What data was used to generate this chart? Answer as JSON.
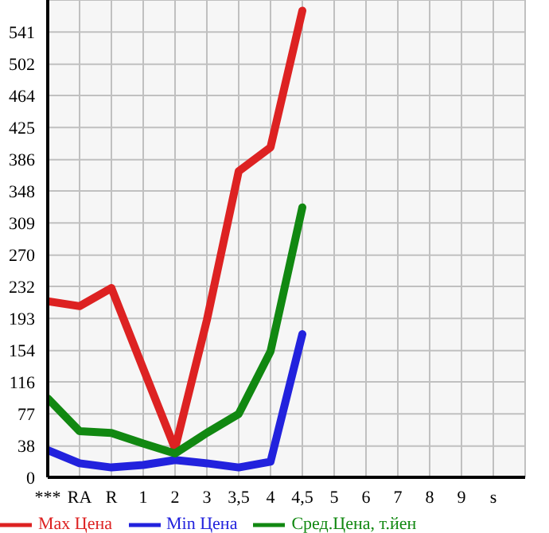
{
  "chart_data": {
    "type": "line",
    "categories": [
      "***",
      "RA",
      "R",
      "1",
      "2",
      "3",
      "3,5",
      "4",
      "4,5",
      "5",
      "6",
      "7",
      "8",
      "9",
      "s"
    ],
    "series": [
      {
        "name": "Max Цена",
        "color": "#dd2222",
        "values": [
          214,
          208,
          230,
          132,
          35,
          191,
          372,
          401,
          567,
          null,
          null,
          null,
          null,
          null,
          null
        ]
      },
      {
        "name": "Min Цена",
        "color": "#2222dd",
        "values": [
          33,
          17,
          12,
          15,
          21,
          17,
          12,
          19,
          174,
          null,
          null,
          null,
          null,
          null,
          null
        ]
      },
      {
        "name": "Сред.Цена, т.йен",
        "color": "#118811",
        "values": [
          96,
          56,
          54,
          41,
          29,
          54,
          77,
          153,
          328,
          null,
          null,
          null,
          null,
          null,
          null
        ]
      }
    ],
    "ylim": [
      0,
      580
    ],
    "yticks": [
      0,
      38,
      77,
      116,
      154,
      193,
      232,
      270,
      309,
      348,
      386,
      425,
      464,
      502,
      541
    ],
    "grid": true,
    "legend": "bottom",
    "marker": "none",
    "line_style": "solid"
  }
}
